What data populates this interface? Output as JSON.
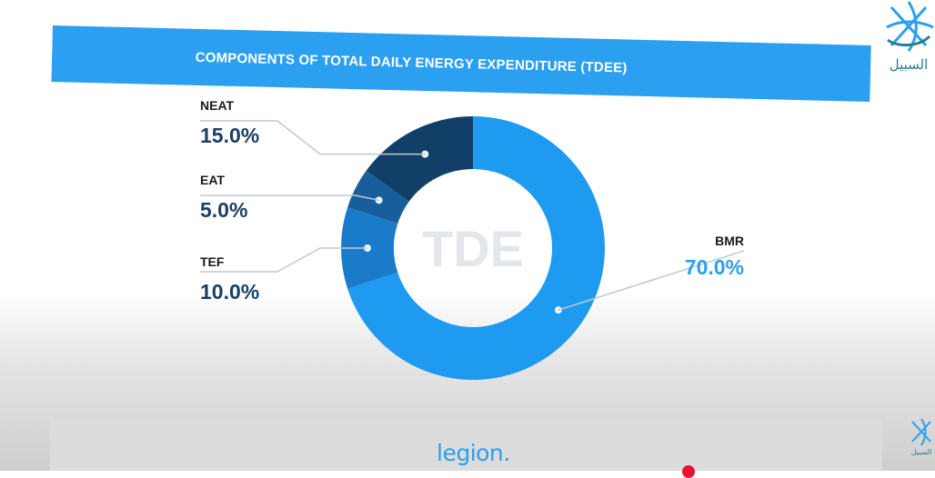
{
  "banner": {
    "title": "COMPONENTS OF TOTAL DAILY ENERGY EXPENDITURE (TDEE)"
  },
  "chart_data": {
    "type": "pie",
    "donut": true,
    "center_label": "TDE",
    "title": "COMPONENTS OF TOTAL DAILY ENERGY EXPENDITURE (TDEE)",
    "slices": [
      {
        "label": "BMR",
        "value": 70.0,
        "display": "70.0%",
        "color": "#1e9bf0"
      },
      {
        "label": "TEF",
        "value": 10.0,
        "display": "10.0%",
        "color": "#1b7bcb"
      },
      {
        "label": "EAT",
        "value": 5.0,
        "display": "5.0%",
        "color": "#195e9c"
      },
      {
        "label": "NEAT",
        "value": 15.0,
        "display": "15.0%",
        "color": "#123f68"
      }
    ]
  },
  "colors": {
    "accent": "#2b9ff0",
    "label_dark": "#1c3f63",
    "label_light": "#2b9ff0"
  },
  "footer": {
    "logo": "legion."
  },
  "watermark": {
    "text": "السبيل"
  }
}
